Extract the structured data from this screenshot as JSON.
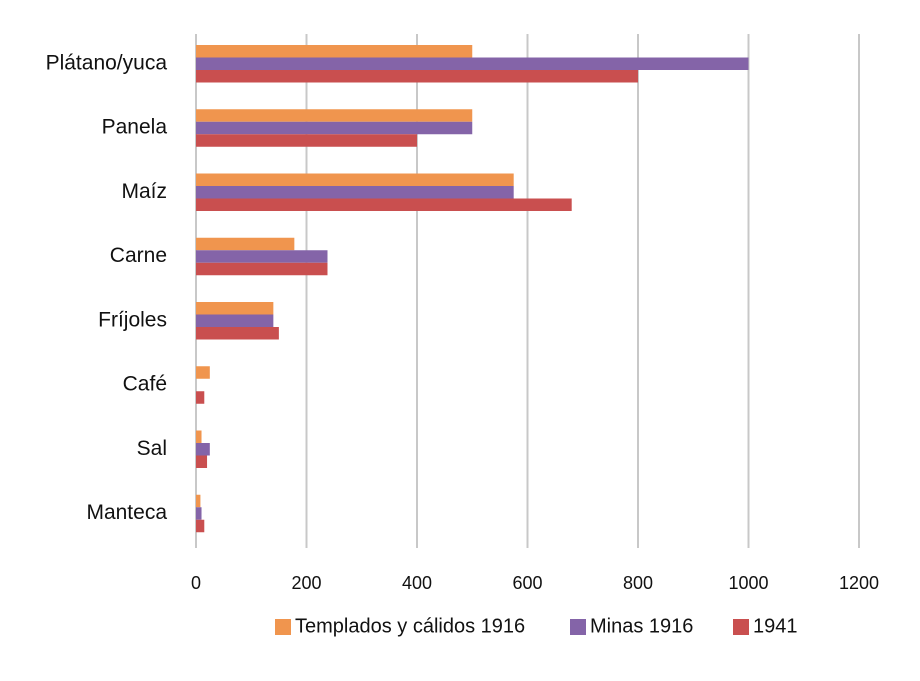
{
  "chart_data": {
    "type": "bar",
    "orientation": "horizontal",
    "categories": [
      "Plátano/yuca",
      "Panela",
      "Maíz",
      "Carne",
      "Fríjoles",
      "Café",
      "Sal",
      "Manteca"
    ],
    "series": [
      {
        "name": "Templados y cálidos 1916",
        "color": "#F0954E",
        "values": [
          500,
          500,
          575,
          178,
          140,
          25,
          10,
          8
        ]
      },
      {
        "name": "Minas 1916",
        "color": "#8464A8",
        "values": [
          1000,
          500,
          575,
          238,
          140,
          0,
          25,
          10
        ]
      },
      {
        "name": "1941",
        "color": "#C94F4F",
        "values": [
          800,
          400,
          680,
          238,
          150,
          15,
          20,
          15
        ]
      }
    ],
    "xlim": [
      0,
      1200
    ],
    "xticks": [
      "0",
      "200",
      "400",
      "600",
      "800",
      "1000",
      "1200"
    ],
    "grid": true,
    "legend": "bottom"
  }
}
